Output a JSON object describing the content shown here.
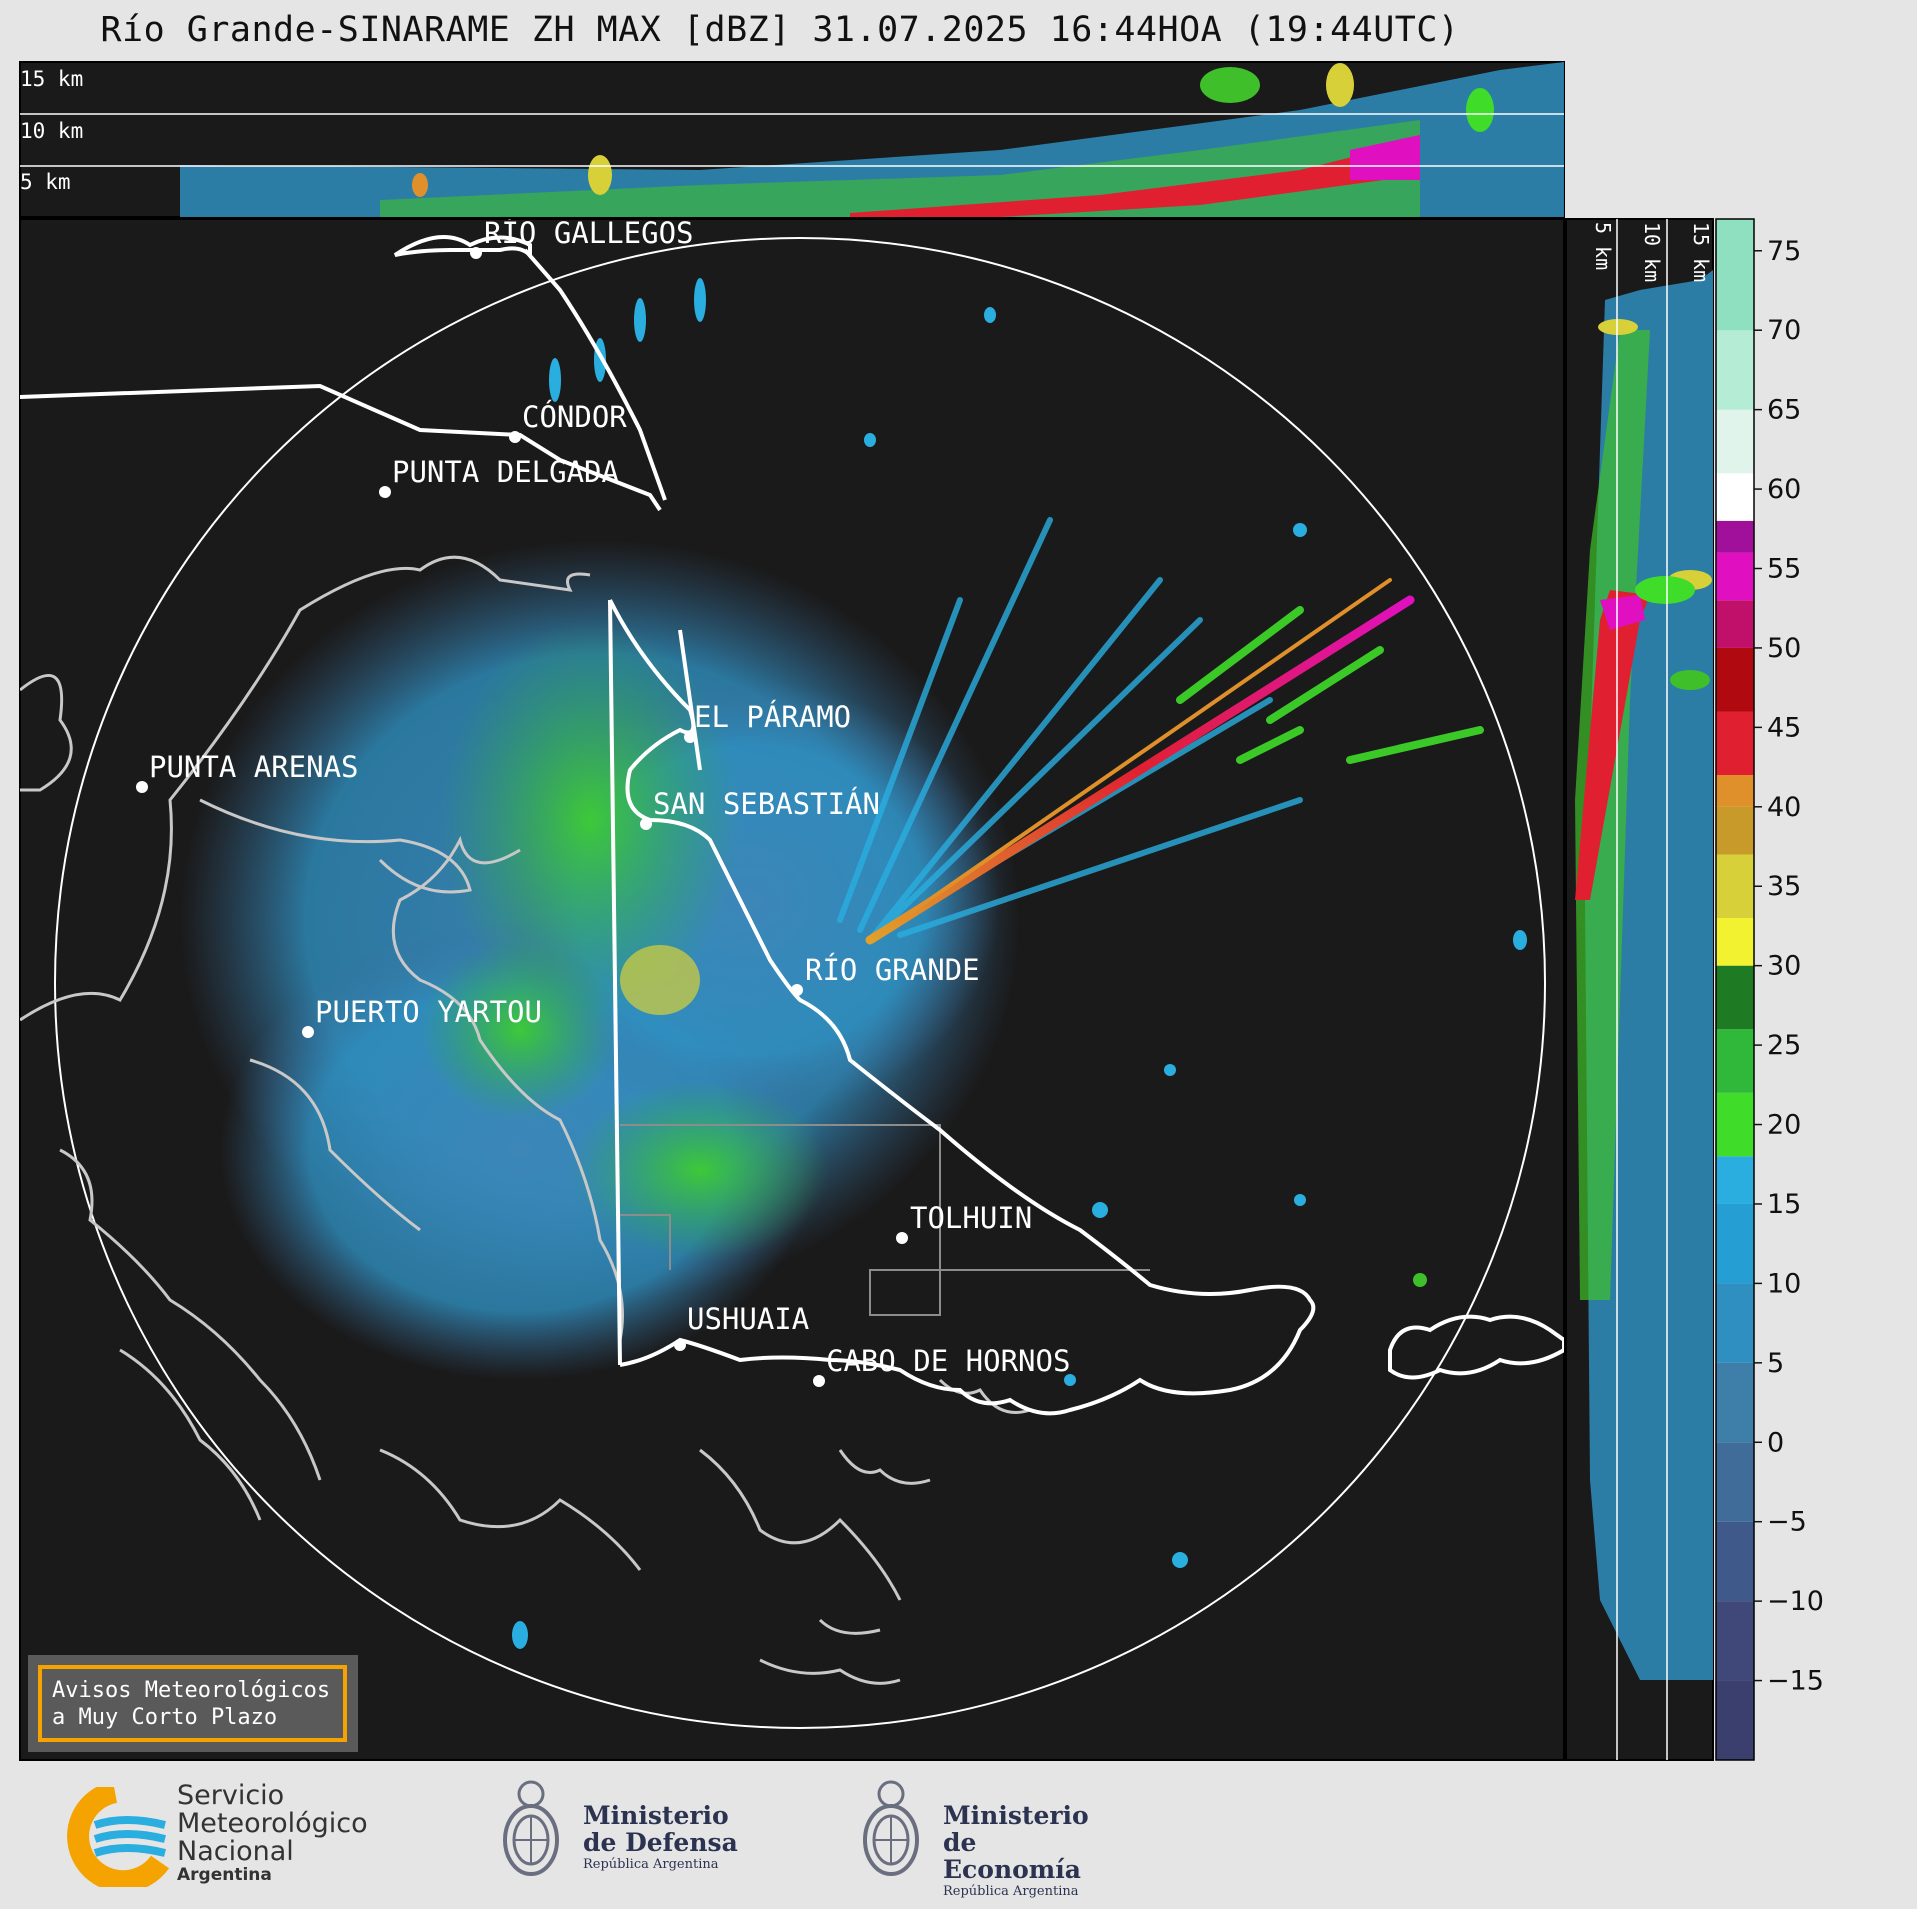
{
  "title": "Río Grande-SINARAME ZH MAX [dBZ] 31.07.2025 16:44HOA (19:44UTC)",
  "top_panel": {
    "heights": [
      "15 km",
      "10 km",
      "5 km"
    ]
  },
  "side_panel": {
    "heights": [
      "5 km",
      "10 km",
      "15 km"
    ]
  },
  "locations": [
    {
      "name": "RÍO GALLEGOS"
    },
    {
      "name": "CÓNDOR"
    },
    {
      "name": "PUNTA DELGADA"
    },
    {
      "name": "EL PÁRAMO"
    },
    {
      "name": "PUNTA ARENAS"
    },
    {
      "name": "SAN SEBASTIÁN"
    },
    {
      "name": "RÍO GRANDE"
    },
    {
      "name": "PUERTO YARTOU"
    },
    {
      "name": "TOLHUIN"
    },
    {
      "name": "USHUAIA"
    },
    {
      "name": "CABO DE HORNOS"
    }
  ],
  "colorbar": {
    "unit": "dBZ",
    "ticks": [
      "75",
      "70",
      "65",
      "60",
      "55",
      "50",
      "45",
      "40",
      "35",
      "30",
      "25",
      "20",
      "15",
      "10",
      "5",
      "0",
      "−5",
      "−10",
      "−15"
    ],
    "bands": [
      {
        "from": -20,
        "to": -15,
        "color": "#3b3f6e"
      },
      {
        "from": -15,
        "to": -10,
        "color": "#40487a"
      },
      {
        "from": -10,
        "to": -5,
        "color": "#3f5a8a"
      },
      {
        "from": -5,
        "to": 0,
        "color": "#3f6c99"
      },
      {
        "from": 0,
        "to": 5,
        "color": "#3d7fa8"
      },
      {
        "from": 5,
        "to": 10,
        "color": "#2f8fc0"
      },
      {
        "from": 10,
        "to": 15,
        "color": "#259fd3"
      },
      {
        "from": 15,
        "to": 18,
        "color": "#2aaee0"
      },
      {
        "from": 18,
        "to": 22,
        "color": "#3fdc2a"
      },
      {
        "from": 22,
        "to": 26,
        "color": "#2fb83a"
      },
      {
        "from": 26,
        "to": 30,
        "color": "#1f7a24"
      },
      {
        "from": 30,
        "to": 33,
        "color": "#f2f230"
      },
      {
        "from": 33,
        "to": 37,
        "color": "#d8d038"
      },
      {
        "from": 37,
        "to": 40,
        "color": "#c89a2a"
      },
      {
        "from": 40,
        "to": 42,
        "color": "#e0902a"
      },
      {
        "from": 42,
        "to": 46,
        "color": "#e02030"
      },
      {
        "from": 46,
        "to": 50,
        "color": "#b00a10"
      },
      {
        "from": 50,
        "to": 53,
        "color": "#c0106a"
      },
      {
        "from": 53,
        "to": 56,
        "color": "#e010c0"
      },
      {
        "from": 56,
        "to": 58,
        "color": "#a0109a"
      },
      {
        "from": 58,
        "to": 61,
        "color": "#ffffff"
      },
      {
        "from": 61,
        "to": 65,
        "color": "#e0f4ec"
      },
      {
        "from": 65,
        "to": 70,
        "color": "#b4ecd6"
      },
      {
        "from": 70,
        "to": 77,
        "color": "#8fe0c0"
      }
    ]
  },
  "warning_box": {
    "line1": "Avisos Meteorológicos",
    "line2": "a Muy Corto Plazo",
    "border_color": "#f4a300"
  },
  "footer": {
    "smn": {
      "line1": "Servicio",
      "line2": "Meteorológico",
      "line3": "Nacional",
      "line4": "Argentina"
    },
    "defensa": {
      "line1": "Ministerio",
      "line2": "de Defensa",
      "line3": "República Argentina"
    },
    "economia": {
      "line1": "Ministerio",
      "line2": "de Economía",
      "line3": "República Argentina"
    }
  }
}
